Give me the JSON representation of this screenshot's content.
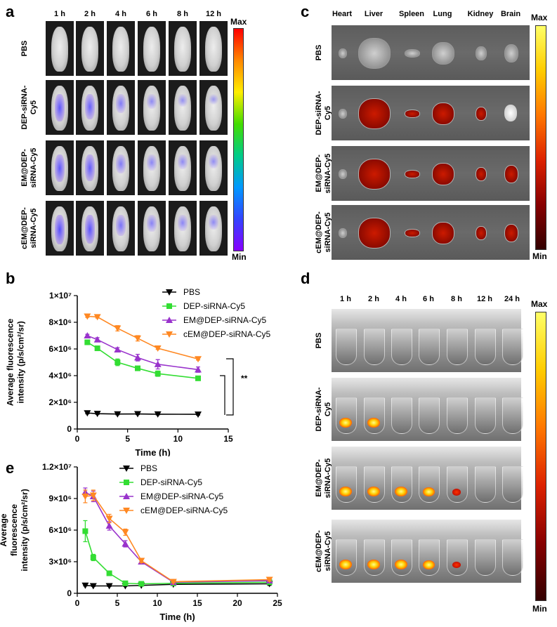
{
  "panels": {
    "a": "a",
    "b": "b",
    "c": "c",
    "d": "d",
    "e": "e"
  },
  "panel_a": {
    "timepoints": [
      "1 h",
      "2 h",
      "4 h",
      "6 h",
      "8 h",
      "12 h"
    ],
    "groups": [
      "PBS",
      "DEP-siRNA-\nCy5",
      "EM@DEP-\nsiRNA-Cy5",
      "cEM@DEP-\nsiRNA-Cy5"
    ],
    "colorbar": {
      "max": "Max",
      "min": "Min"
    }
  },
  "panel_c": {
    "organs": [
      "Heart",
      "Liver",
      "Spleen",
      "Lung",
      "Kidney",
      "Brain"
    ],
    "groups": [
      "PBS",
      "DEP-siRNA-\nCy5",
      "EM@DEP-\nsiRNA-Cy5",
      "cEM@DEP-\nsiRNA-Cy5"
    ],
    "colorbar": {
      "max": "Max",
      "min": "Min"
    }
  },
  "panel_d": {
    "timepoints": [
      "1 h",
      "2 h",
      "4 h",
      "6 h",
      "8 h",
      "12 h",
      "24 h"
    ],
    "groups": [
      "PBS",
      "DEP-siRNA-\nCy5",
      "EM@DEP-\nsiRNA-Cy5",
      "cEM@DEP-\nsiRNA-Cy5"
    ],
    "colorbar": {
      "max": "Max",
      "min": "Min"
    }
  },
  "significance": "**",
  "chart_data": [
    {
      "panel": "b",
      "type": "line",
      "xlabel": "Time (h)",
      "ylabel_line1": "Average fluorescence",
      "ylabel_line2": "intensity (p/s/cm²/sr)",
      "xlim": [
        0,
        15
      ],
      "ylim": [
        0,
        10000000
      ],
      "xticks": [
        "0",
        "5",
        "10",
        "15"
      ],
      "yticks": [
        "0",
        "2×10⁶",
        "4×10⁶",
        "6×10⁶",
        "8×10⁶",
        "1×10⁷"
      ],
      "x": [
        1,
        2,
        4,
        6,
        8,
        12
      ],
      "series": [
        {
          "name": "PBS",
          "color": "#000000",
          "marker": "triangle-down",
          "values": [
            1200000,
            1150000,
            1120000,
            1130000,
            1110000,
            1100000
          ],
          "err": [
            60000,
            50000,
            50000,
            50000,
            50000,
            50000
          ]
        },
        {
          "name": "DEP-siRNA-Cy5",
          "color": "#33dd33",
          "marker": "square",
          "values": [
            6500000,
            6050000,
            5000000,
            4550000,
            4150000,
            3800000
          ],
          "err": [
            150000,
            150000,
            250000,
            150000,
            200000,
            150000
          ]
        },
        {
          "name": "EM@DEP-siRNA-Cy5",
          "color": "#9933cc",
          "marker": "triangle-up",
          "values": [
            7000000,
            6700000,
            5950000,
            5350000,
            4850000,
            4450000
          ],
          "err": [
            100000,
            150000,
            150000,
            250000,
            350000,
            200000
          ]
        },
        {
          "name": "cEM@DEP-siRNA-Cy5",
          "color": "#ff8822",
          "marker": "triangle-down",
          "values": [
            8450000,
            8400000,
            7550000,
            6800000,
            6050000,
            5250000
          ],
          "err": [
            80000,
            80000,
            200000,
            200000,
            80000,
            80000
          ]
        }
      ]
    },
    {
      "panel": "e",
      "type": "line",
      "xlabel": "Time (h)",
      "ylabel_line1": "Average",
      "ylabel_line2": "fluorescence",
      "ylabel_line3": "intensity (p/s/cm²/sr)",
      "xlim": [
        0,
        25
      ],
      "ylim": [
        0,
        12000000
      ],
      "xticks": [
        "0",
        "5",
        "10",
        "15",
        "20",
        "25"
      ],
      "yticks": [
        "0",
        "3×10⁶",
        "6×10⁶",
        "9×10⁶",
        "1.2×10⁷"
      ],
      "x": [
        1,
        2,
        4,
        6,
        8,
        12,
        24
      ],
      "series": [
        {
          "name": "PBS",
          "color": "#000000",
          "marker": "triangle-down",
          "values": [
            750000,
            700000,
            700000,
            700000,
            750000,
            850000,
            900000
          ],
          "err": [
            50000,
            50000,
            50000,
            50000,
            50000,
            50000,
            150000
          ]
        },
        {
          "name": "DEP-siRNA-Cy5",
          "color": "#33dd33",
          "marker": "square",
          "values": [
            5900000,
            3400000,
            1900000,
            950000,
            900000,
            950000,
            1050000
          ],
          "err": [
            1000000,
            300000,
            200000,
            100000,
            100000,
            100000,
            200000
          ]
        },
        {
          "name": "EM@DEP-siRNA-Cy5",
          "color": "#9933cc",
          "marker": "triangle-up",
          "values": [
            9600000,
            9200000,
            6400000,
            4700000,
            3000000,
            1050000,
            1200000
          ],
          "err": [
            400000,
            500000,
            400000,
            300000,
            200000,
            100000,
            150000
          ]
        },
        {
          "name": "cEM@DEP-siRNA-Cy5",
          "color": "#ff8822",
          "marker": "triangle-down",
          "values": [
            9200000,
            9300000,
            7100000,
            5800000,
            3100000,
            1100000,
            1300000
          ],
          "err": [
            600000,
            500000,
            400000,
            300000,
            200000,
            100000,
            150000
          ]
        }
      ]
    }
  ]
}
